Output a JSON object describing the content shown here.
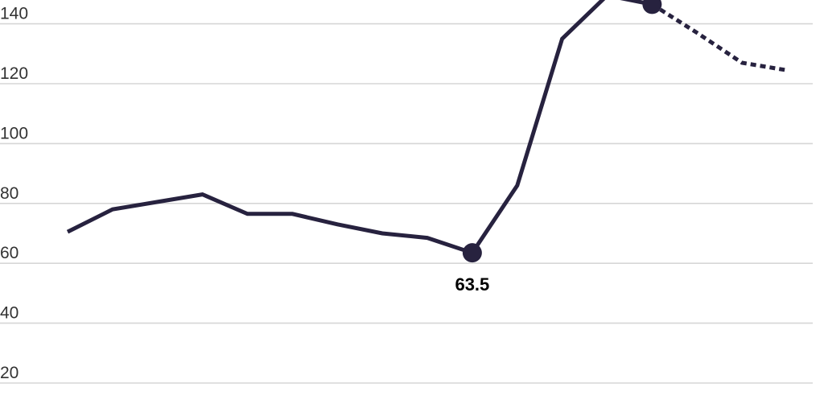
{
  "chart_data": {
    "type": "line",
    "title": "",
    "xlabel": "",
    "ylabel": "",
    "x": [
      1,
      2,
      3,
      4,
      5,
      6,
      7,
      8,
      9,
      10,
      11,
      12,
      13,
      14,
      15,
      16,
      17
    ],
    "ylim": [
      0,
      150
    ],
    "yticks": [
      20,
      40,
      60,
      80,
      100,
      120,
      140
    ],
    "grid": true,
    "line_color": "#27223f",
    "series": [
      {
        "values": [
          70.5,
          78,
          80.5,
          83,
          76.5,
          76.5,
          73,
          70,
          68.5,
          63.5,
          86,
          135,
          149.5,
          146.5,
          null,
          null,
          null
        ],
        "style": "solid"
      },
      {
        "values": [
          null,
          null,
          null,
          null,
          null,
          null,
          null,
          null,
          null,
          null,
          null,
          null,
          null,
          146.5,
          137,
          127,
          124.5
        ],
        "style": "dotted"
      }
    ],
    "highlighted_points": [
      {
        "x": 10,
        "y": 63.5,
        "label": "63.5"
      },
      {
        "x": 14,
        "y": 146.5,
        "label": ""
      }
    ]
  }
}
